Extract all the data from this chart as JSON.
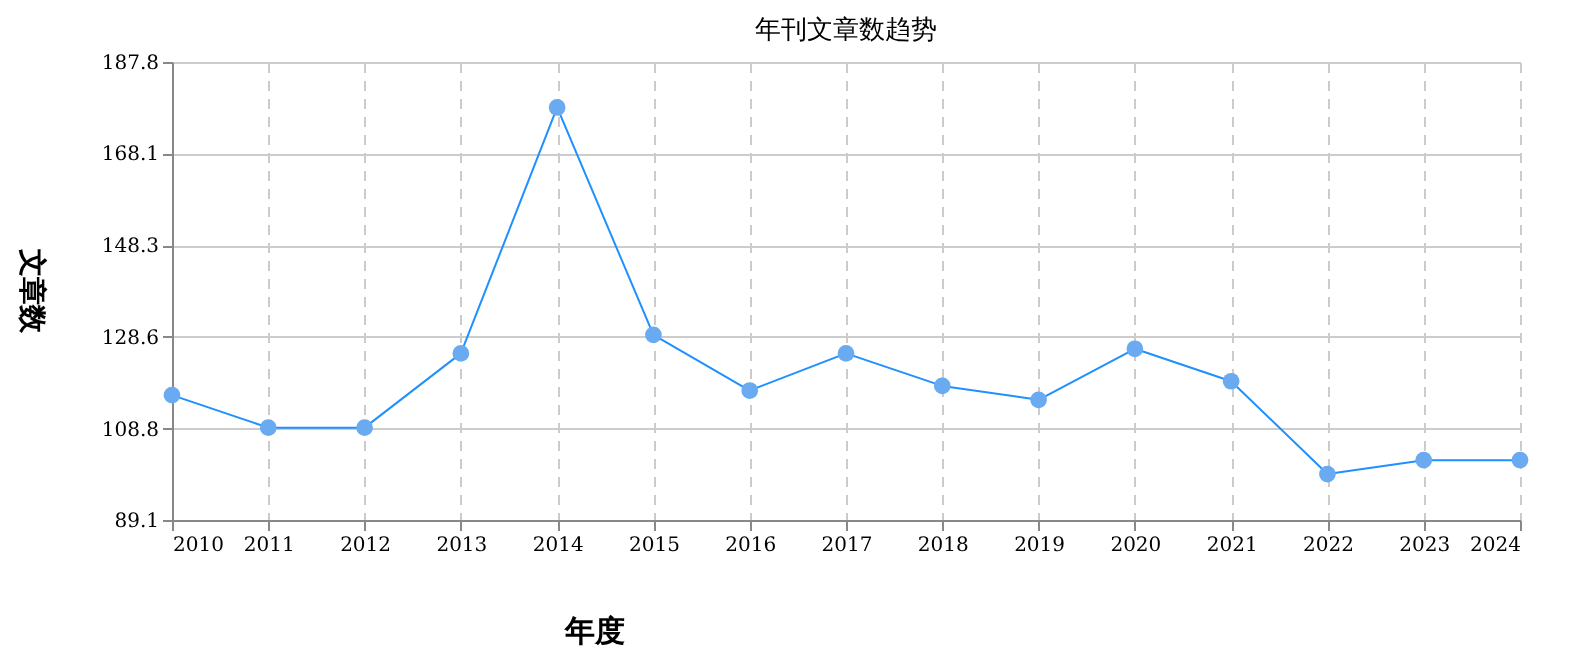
{
  "chart_data": {
    "type": "line",
    "title": "年刊文章数趋势",
    "xlabel": "年度",
    "ylabel": "文章数",
    "categories": [
      "2010",
      "2011",
      "2012",
      "2013",
      "2014",
      "2015",
      "2016",
      "2017",
      "2018",
      "2019",
      "2020",
      "2021",
      "2022",
      "2023",
      "2024"
    ],
    "series": [
      {
        "color": "#1e90ff",
        "values": [
          116,
          109,
          109,
          125,
          178,
          129,
          117,
          125,
          118,
          115,
          126,
          119,
          99,
          102,
          102
        ]
      }
    ],
    "ylim": [
      89.1,
      187.8
    ],
    "yticks": [
      89.1,
      108.8,
      128.6,
      148.3,
      168.1,
      187.8
    ],
    "grid": true,
    "marker": "circle",
    "line_style": "solid"
  }
}
